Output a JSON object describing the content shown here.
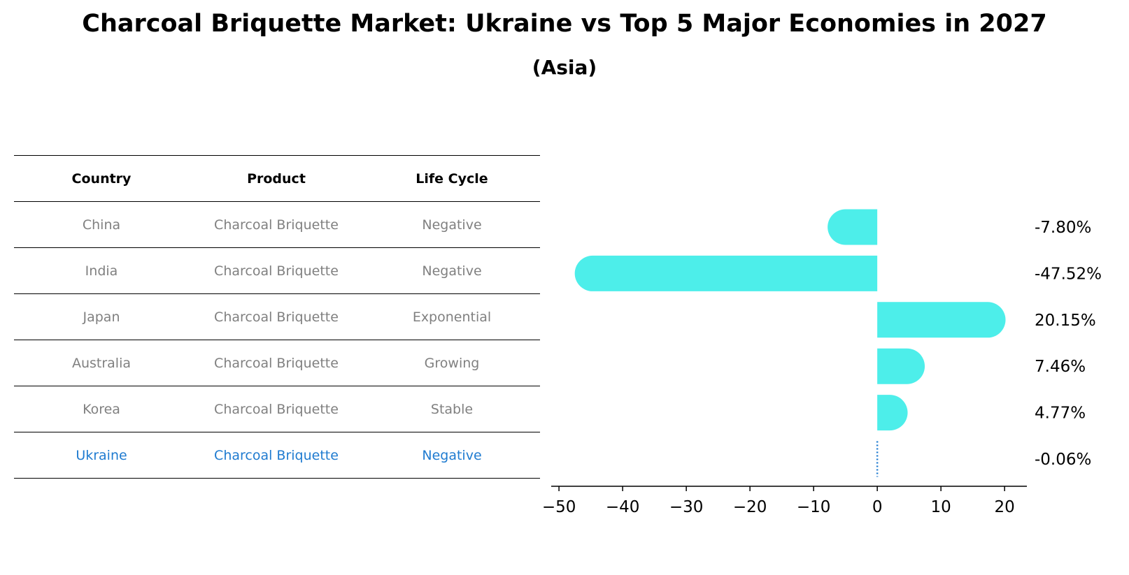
{
  "title": "Charcoal Briquette Market: Ukraine vs Top 5 Major Economies in 2027",
  "subtitle": "(Asia)",
  "table": {
    "headers": [
      "Country",
      "Product",
      "Life Cycle"
    ],
    "rows": [
      {
        "country": "China",
        "product": "Charcoal Briquette",
        "life_cycle": "Negative"
      },
      {
        "country": "India",
        "product": "Charcoal Briquette",
        "life_cycle": "Negative"
      },
      {
        "country": "Japan",
        "product": "Charcoal Briquette",
        "life_cycle": "Exponential"
      },
      {
        "country": "Australia",
        "product": "Charcoal Briquette",
        "life_cycle": "Growing"
      },
      {
        "country": "Korea",
        "product": "Charcoal Briquette",
        "life_cycle": "Stable"
      },
      {
        "country": "Ukraine",
        "product": "Charcoal Briquette",
        "life_cycle": "Negative"
      }
    ]
  },
  "colors": {
    "bar": "#4deeea",
    "highlight": "#1f7bd0",
    "muted_text": "#808080",
    "axis": "#000000"
  },
  "chart_data": {
    "type": "bar",
    "orientation": "horizontal",
    "categories": [
      "China",
      "India",
      "Japan",
      "Australia",
      "Korea",
      "Ukraine"
    ],
    "values": [
      -7.8,
      -47.52,
      20.15,
      7.46,
      4.77,
      -0.06
    ],
    "value_labels": [
      "-7.80%",
      "-47.52%",
      "20.15%",
      "7.46%",
      "4.77%",
      "-0.06%"
    ],
    "highlight_category": "Ukraine",
    "xlim": [
      -51,
      23.5
    ],
    "xticks": [
      -50,
      -40,
      -30,
      -20,
      -10,
      0,
      10,
      20
    ],
    "xtick_labels": [
      "−50",
      "−40",
      "−30",
      "−20",
      "−10",
      "0",
      "10",
      "20"
    ],
    "xlabel": "",
    "ylabel": "",
    "grid": false,
    "legend": "none"
  }
}
